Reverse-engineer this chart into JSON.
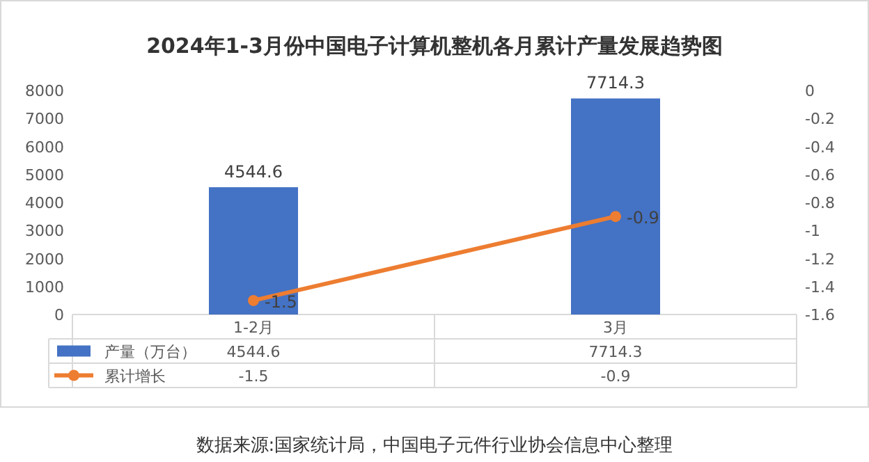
{
  "chart_data": {
    "type": "bar",
    "title": "2024年1-3月份中国电子计算机整机各月累计产量发展趋势图",
    "categories": [
      "1-2月",
      "3月"
    ],
    "series": [
      {
        "name": "产量（万台）",
        "color": "#4472c4",
        "values": [
          4544.6,
          7714.3
        ],
        "value_labels": [
          "4544.6",
          "7714.3"
        ]
      },
      {
        "name": "累计增长",
        "type": "line",
        "axis": "y2",
        "color": "#ed7d31",
        "values": [
          -1.5,
          -0.9
        ],
        "value_labels": [
          "-1.5",
          "-0.9"
        ]
      }
    ],
    "ylim": [
      0,
      8000
    ],
    "yticks": [
      0,
      1000,
      2000,
      3000,
      4000,
      5000,
      6000,
      7000,
      8000
    ],
    "y2lim": [
      -1.6,
      0
    ],
    "y2ticks": [
      -1.6,
      -1.4,
      -1.2,
      -1,
      -0.8,
      -0.6,
      -0.4,
      -0.2,
      0
    ],
    "marker": "circle",
    "legend": "bottom",
    "annotations": [
      "数据来源:国家统计局，中国电子元件行业协会信息中心整理"
    ]
  }
}
